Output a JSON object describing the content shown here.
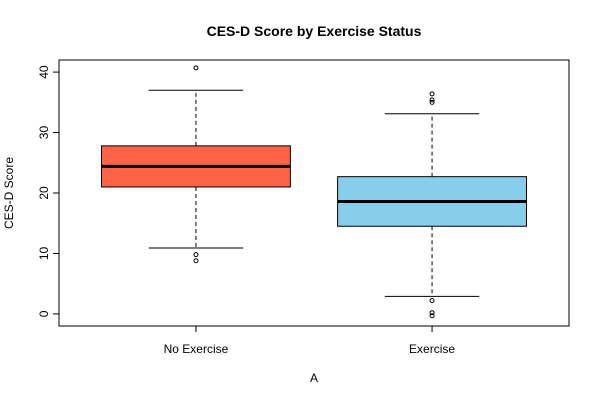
{
  "chart_data": {
    "type": "boxplot",
    "title": "CES-D Score by Exercise Status",
    "xlabel": "A",
    "ylabel": "CES-D Score",
    "ylim": [
      -2,
      42
    ],
    "y_ticks": [
      0,
      10,
      20,
      30,
      40
    ],
    "grid": false,
    "categories": [
      "No Exercise",
      "Exercise"
    ],
    "boxes": [
      {
        "category": "No Exercise",
        "color": "#FF6347",
        "whisker_low": 10.9,
        "q1": 21.0,
        "median": 24.4,
        "q3": 27.8,
        "whisker_high": 37.0,
        "outliers": [
          9.8,
          8.8,
          40.7
        ]
      },
      {
        "category": "Exercise",
        "color": "#87CEEB",
        "whisker_low": 2.9,
        "q1": 14.5,
        "median": 18.6,
        "q3": 22.7,
        "whisker_high": 33.1,
        "outliers": [
          2.2,
          0.2,
          -0.3,
          35.0,
          35.4,
          36.4
        ]
      }
    ]
  }
}
